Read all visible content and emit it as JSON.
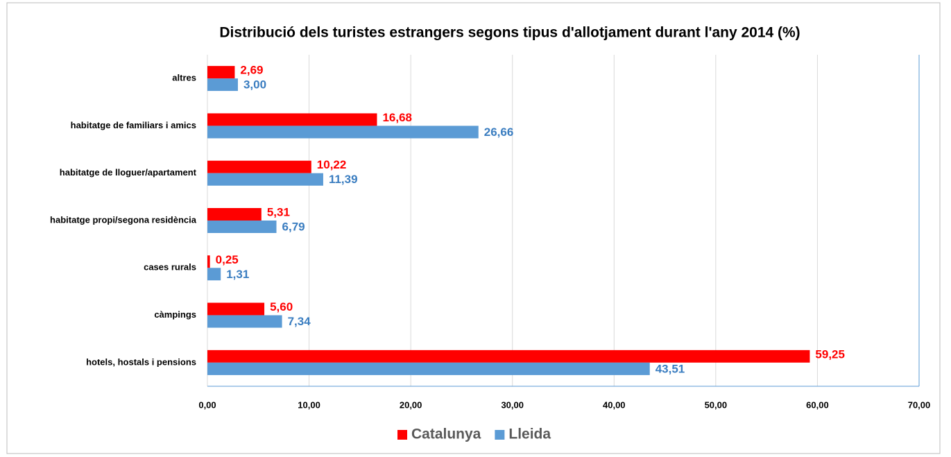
{
  "chart_data": {
    "type": "bar",
    "orientation": "horizontal",
    "title": "Distribució dels turistes estrangers segons tipus d'allotjament durant l'any 2014 (%)",
    "categories": [
      "altres",
      "habitatge de familiars i amics",
      "habitatge de lloguer/apartament",
      "habitatge propi/segona residència",
      "cases rurals",
      "càmpings",
      "hotels, hostals i pensions"
    ],
    "series": [
      {
        "name": "Catalunya",
        "color": "#ff0000",
        "values": [
          2.69,
          16.68,
          10.22,
          5.31,
          0.25,
          5.6,
          59.25
        ],
        "value_labels": [
          "2,69",
          "16,68",
          "10,22",
          "5,31",
          "0,25",
          "5,60",
          "59,25"
        ]
      },
      {
        "name": "Lleida",
        "color": "#5b9bd5",
        "values": [
          3.0,
          26.66,
          11.39,
          6.79,
          1.31,
          7.34,
          43.51
        ],
        "value_labels": [
          "3,00",
          "26,66",
          "11,39",
          "6,79",
          "1,31",
          "7,34",
          "43,51"
        ]
      }
    ],
    "xlim": [
      0,
      70
    ],
    "xticks": [
      {
        "value": 0,
        "label": "0,00"
      },
      {
        "value": 10,
        "label": "10,00"
      },
      {
        "value": 20,
        "label": "20,00"
      },
      {
        "value": 30,
        "label": "30,00"
      },
      {
        "value": 40,
        "label": "40,00"
      },
      {
        "value": 50,
        "label": "50,00"
      },
      {
        "value": 60,
        "label": "60,00"
      },
      {
        "value": 70,
        "label": "70,00"
      }
    ],
    "grid": true,
    "legend": "bottom"
  }
}
